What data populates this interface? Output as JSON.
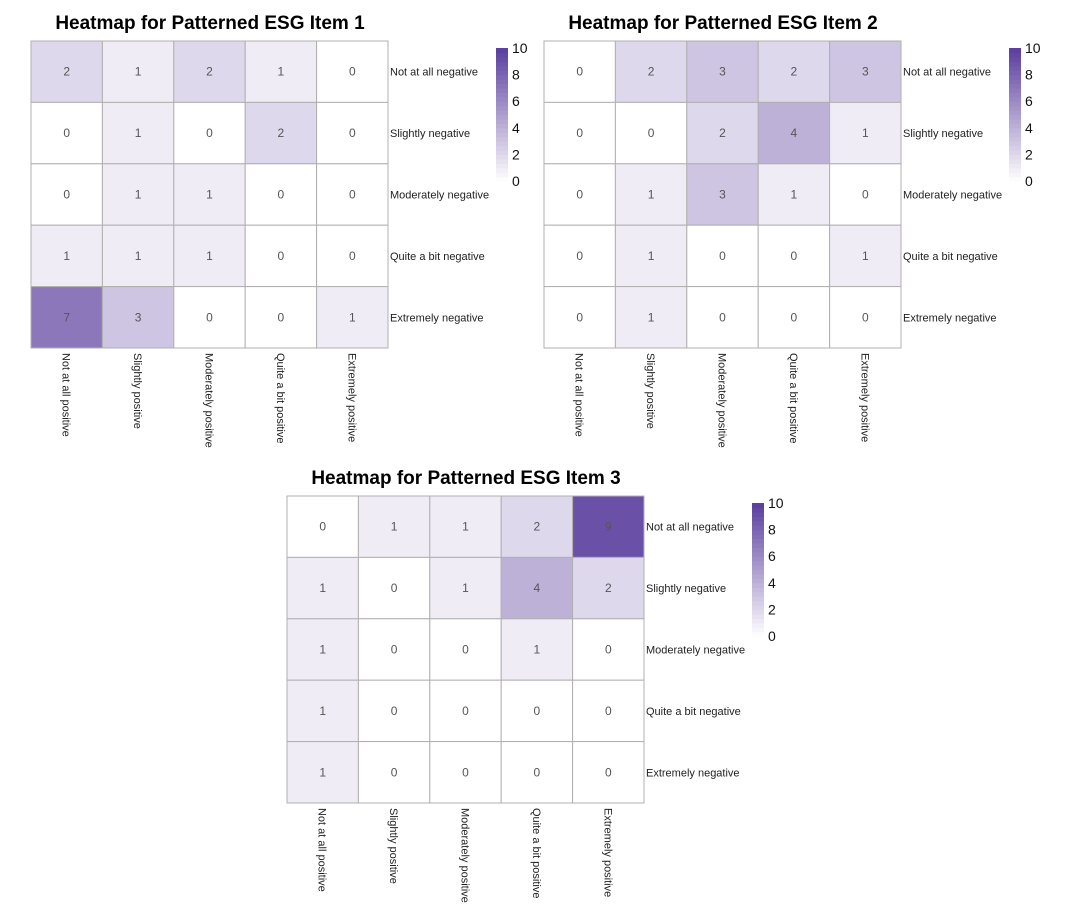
{
  "colors": {
    "low": "#ffffff",
    "high": "#5a3d9e",
    "cell_border": "#b0b0b0",
    "text": "#555555"
  },
  "chart_data": [
    {
      "type": "heatmap",
      "title": "Heatmap for Patterned ESG Item 1",
      "x_categories": [
        "Not at all positive",
        "Slightly positive",
        "Moderately positive",
        "Quite a bit positive",
        "Extremely positive"
      ],
      "y_categories": [
        "Not at all negative",
        "Slightly negative",
        "Moderately negative",
        "Quite a bit negative",
        "Extremely negative"
      ],
      "values": [
        [
          2,
          1,
          2,
          1,
          0
        ],
        [
          0,
          1,
          0,
          2,
          0
        ],
        [
          0,
          1,
          1,
          0,
          0
        ],
        [
          1,
          1,
          1,
          0,
          0
        ],
        [
          7,
          3,
          0,
          0,
          1
        ]
      ],
      "scale": {
        "min": 0,
        "max": 10,
        "ticks": [
          "0",
          "2",
          "4",
          "6",
          "8",
          "10"
        ]
      }
    },
    {
      "type": "heatmap",
      "title": "Heatmap for Patterned ESG Item 2",
      "x_categories": [
        "Not at all positive",
        "Slightly positive",
        "Moderately positive",
        "Quite a bit positive",
        "Extremely positive"
      ],
      "y_categories": [
        "Not at all negative",
        "Slightly negative",
        "Moderately negative",
        "Quite a bit negative",
        "Extremely negative"
      ],
      "values": [
        [
          0,
          2,
          3,
          2,
          3
        ],
        [
          0,
          0,
          2,
          4,
          1
        ],
        [
          0,
          1,
          3,
          1,
          0
        ],
        [
          0,
          1,
          0,
          0,
          1
        ],
        [
          0,
          1,
          0,
          0,
          0
        ]
      ],
      "scale": {
        "min": 0,
        "max": 10,
        "ticks": [
          "0",
          "2",
          "4",
          "6",
          "8",
          "10"
        ]
      }
    },
    {
      "type": "heatmap",
      "title": "Heatmap for Patterned ESG Item 3",
      "x_categories": [
        "Not at all positive",
        "Slightly positive",
        "Moderately positive",
        "Quite a bit positive",
        "Extremely positive"
      ],
      "y_categories": [
        "Not at all negative",
        "Slightly negative",
        "Moderately negative",
        "Quite a bit negative",
        "Extremely negative"
      ],
      "values": [
        [
          0,
          1,
          1,
          2,
          9
        ],
        [
          1,
          0,
          1,
          4,
          2
        ],
        [
          1,
          0,
          0,
          1,
          0
        ],
        [
          1,
          0,
          0,
          0,
          0
        ],
        [
          1,
          0,
          0,
          0,
          0
        ]
      ],
      "scale": {
        "min": 0,
        "max": 10,
        "ticks": [
          "0",
          "2",
          "4",
          "6",
          "8",
          "10"
        ]
      }
    }
  ]
}
